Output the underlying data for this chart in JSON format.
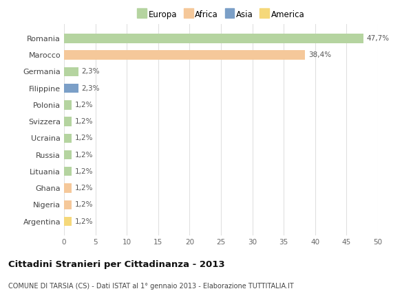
{
  "categories": [
    "Romania",
    "Marocco",
    "Germania",
    "Filippine",
    "Polonia",
    "Svizzera",
    "Ucraina",
    "Russia",
    "Lituania",
    "Ghana",
    "Nigeria",
    "Argentina"
  ],
  "values": [
    47.7,
    38.4,
    2.3,
    2.3,
    1.2,
    1.2,
    1.2,
    1.2,
    1.2,
    1.2,
    1.2,
    1.2
  ],
  "labels": [
    "47,7%",
    "38,4%",
    "2,3%",
    "2,3%",
    "1,2%",
    "1,2%",
    "1,2%",
    "1,2%",
    "1,2%",
    "1,2%",
    "1,2%",
    "1,2%"
  ],
  "colors": [
    "#b5d4a0",
    "#f5c89a",
    "#b5d4a0",
    "#7b9fc7",
    "#b5d4a0",
    "#b5d4a0",
    "#b5d4a0",
    "#b5d4a0",
    "#b5d4a0",
    "#f5c89a",
    "#f5c89a",
    "#f5d87a"
  ],
  "legend_labels": [
    "Europa",
    "Africa",
    "Asia",
    "America"
  ],
  "legend_colors": [
    "#b5d4a0",
    "#f5c89a",
    "#7b9fc7",
    "#f5d87a"
  ],
  "title": "Cittadini Stranieri per Cittadinanza - 2013",
  "subtitle": "COMUNE DI TARSIA (CS) - Dati ISTAT al 1° gennaio 2013 - Elaborazione TUTTITALIA.IT",
  "xlim": [
    0,
    50
  ],
  "xticks": [
    0,
    5,
    10,
    15,
    20,
    25,
    30,
    35,
    40,
    45,
    50
  ],
  "background_color": "#ffffff",
  "grid_color": "#e0e0e0",
  "bar_height": 0.55
}
